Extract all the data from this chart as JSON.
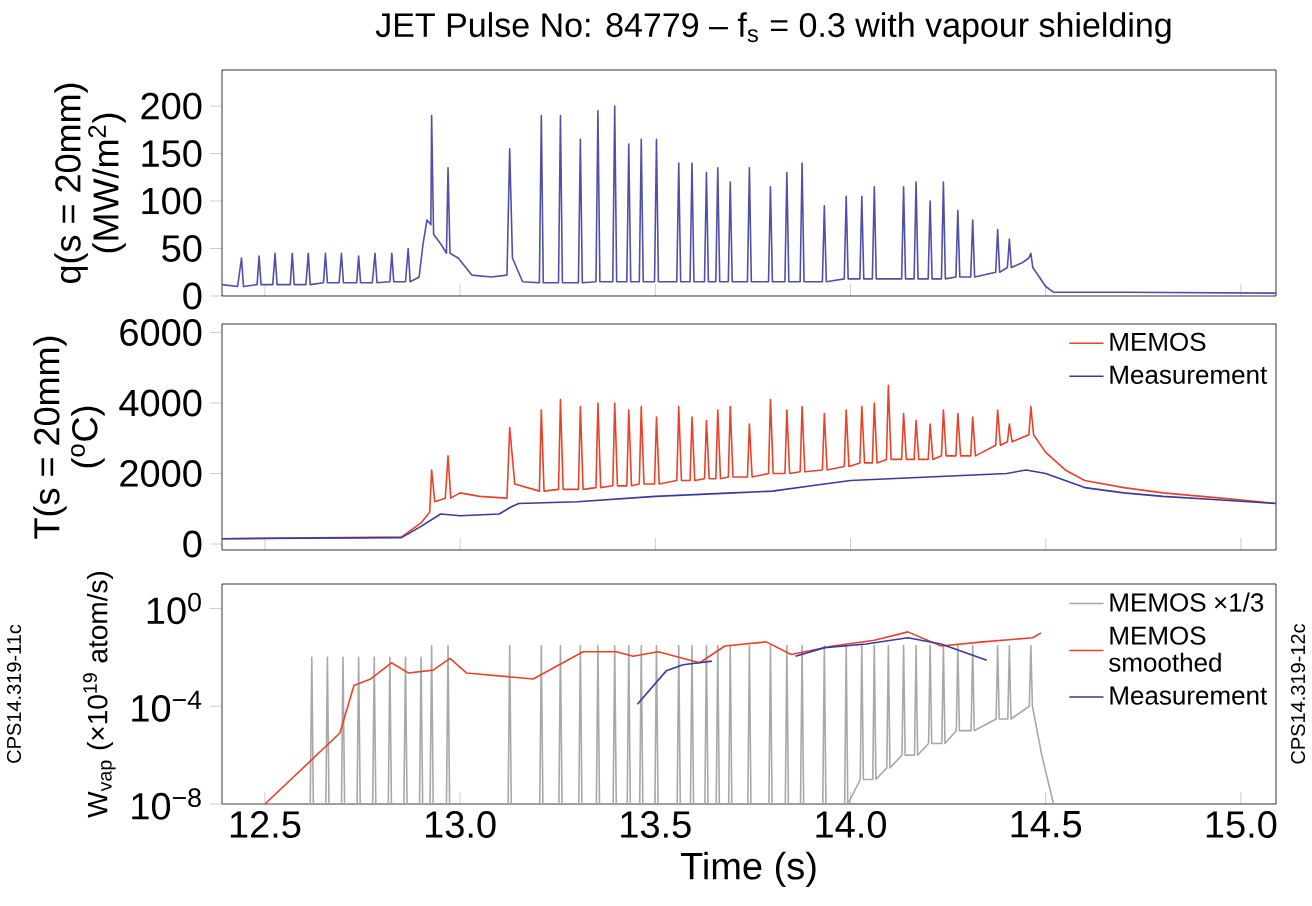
{
  "chart_data": [
    {
      "type": "line",
      "title": "JET Pulse No: 84779 – f$_{s}$ = 0.3 with vapour shielding",
      "ylabel": "q(s = 20mm) (MW/m$^{2}$)",
      "xlim": [
        12.39,
        15.09
      ],
      "ylim": [
        0,
        238
      ],
      "xticks": [
        12.5,
        13,
        13.5,
        14,
        14.5,
        15
      ],
      "yticks": [
        0,
        50,
        100,
        150,
        200
      ],
      "tick_labels": "y",
      "series": [
        {
          "color": "#5050a8",
          "x": [
            12.39,
            12.43,
            12.44,
            12.445,
            12.48,
            12.485,
            12.49,
            12.52,
            12.526,
            12.531,
            12.565,
            12.57,
            12.575,
            12.605,
            12.611,
            12.616,
            12.65,
            12.655,
            12.66,
            12.69,
            12.696,
            12.701,
            12.735,
            12.74,
            12.745,
            12.775,
            12.782,
            12.787,
            12.82,
            12.825,
            12.83,
            12.86,
            12.867,
            12.872,
            12.895,
            12.905,
            12.915,
            12.925,
            12.927,
            12.932,
            12.95,
            12.965,
            12.969,
            12.974,
            12.995,
            13.03,
            13.08,
            13.12,
            13.127,
            13.134,
            13.16,
            13.203,
            13.208,
            13.213,
            13.252,
            13.257,
            13.262,
            13.303,
            13.308,
            13.313,
            13.348,
            13.353,
            13.358,
            13.391,
            13.396,
            13.401,
            13.427,
            13.432,
            13.437,
            13.459,
            13.464,
            13.469,
            13.498,
            13.503,
            13.508,
            13.555,
            13.56,
            13.565,
            13.589,
            13.594,
            13.599,
            13.626,
            13.631,
            13.636,
            13.655,
            13.66,
            13.665,
            13.687,
            13.692,
            13.697,
            13.736,
            13.741,
            13.746,
            13.79,
            13.795,
            13.8,
            13.832,
            13.837,
            13.842,
            13.871,
            13.876,
            13.881,
            13.928,
            13.933,
            13.938,
            13.984,
            13.989,
            13.994,
            14.024,
            14.029,
            14.034,
            14.056,
            14.061,
            14.066,
            14.131,
            14.136,
            14.141,
            14.163,
            14.168,
            14.173,
            14.199,
            14.204,
            14.209,
            14.233,
            14.238,
            14.243,
            14.27,
            14.275,
            14.28,
            14.308,
            14.313,
            14.318,
            14.372,
            14.377,
            14.382,
            14.402,
            14.407,
            14.412,
            14.44,
            14.457,
            14.462,
            14.467,
            14.5,
            14.52,
            14.7,
            15.09
          ],
          "values": [
            12,
            10,
            40,
            10,
            12,
            42,
            12,
            12,
            45,
            12,
            12,
            45,
            12,
            12,
            45,
            12,
            14,
            45,
            14,
            14,
            45,
            14,
            14,
            42,
            14,
            14,
            45,
            14,
            15,
            45,
            15,
            15,
            50,
            15,
            20,
            55,
            80,
            75,
            190,
            65,
            55,
            45,
            135,
            45,
            40,
            22,
            20,
            22,
            155,
            40,
            15,
            14,
            190,
            14,
            14,
            190,
            14,
            14,
            165,
            14,
            15,
            195,
            15,
            15,
            200,
            15,
            15,
            160,
            15,
            15,
            165,
            15,
            15,
            165,
            15,
            15,
            140,
            15,
            15,
            140,
            15,
            15,
            130,
            15,
            15,
            135,
            15,
            15,
            120,
            15,
            15,
            135,
            15,
            15,
            115,
            15,
            15,
            130,
            15,
            15,
            140,
            15,
            15,
            95,
            15,
            18,
            105,
            18,
            18,
            105,
            18,
            18,
            115,
            18,
            18,
            115,
            18,
            18,
            120,
            18,
            18,
            100,
            18,
            18,
            120,
            18,
            20,
            90,
            20,
            20,
            80,
            20,
            25,
            70,
            25,
            30,
            60,
            30,
            35,
            40,
            45,
            30,
            10,
            4,
            4,
            3
          ]
        }
      ]
    },
    {
      "type": "line",
      "ylabel": "T(s = 20mm) ($^{o}$C)",
      "xlim": [
        12.39,
        15.09
      ],
      "ylim": [
        -170,
        6240
      ],
      "xticks": [
        12.5,
        13,
        13.5,
        14,
        14.5,
        15
      ],
      "yticks": [
        0,
        2000,
        4000,
        6000
      ],
      "tick_labels": "y",
      "legend": "top right",
      "series": [
        {
          "name": "MEMOS",
          "color": "#e8432a",
          "x": [
            12.39,
            12.85,
            12.9,
            12.922,
            12.927,
            12.935,
            12.962,
            12.969,
            12.976,
            13.0,
            13.05,
            13.12,
            13.127,
            13.14,
            13.203,
            13.208,
            13.215,
            13.252,
            13.257,
            13.264,
            13.303,
            13.308,
            13.315,
            13.348,
            13.353,
            13.36,
            13.391,
            13.396,
            13.403,
            13.427,
            13.432,
            13.439,
            13.459,
            13.464,
            13.471,
            13.498,
            13.503,
            13.51,
            13.555,
            13.56,
            13.567,
            13.589,
            13.594,
            13.601,
            13.626,
            13.631,
            13.638,
            13.655,
            13.66,
            13.667,
            13.687,
            13.692,
            13.699,
            13.736,
            13.741,
            13.748,
            13.79,
            13.795,
            13.802,
            13.832,
            13.837,
            13.844,
            13.871,
            13.876,
            13.883,
            13.928,
            13.933,
            13.94,
            13.984,
            13.989,
            13.996,
            14.024,
            14.029,
            14.036,
            14.056,
            14.061,
            14.068,
            14.092,
            14.097,
            14.104,
            14.131,
            14.136,
            14.143,
            14.163,
            14.168,
            14.175,
            14.199,
            14.204,
            14.211,
            14.233,
            14.238,
            14.245,
            14.27,
            14.275,
            14.282,
            14.308,
            14.313,
            14.32,
            14.372,
            14.377,
            14.384,
            14.402,
            14.407,
            14.414,
            14.457,
            14.462,
            14.469,
            14.5,
            14.55,
            14.6,
            14.7,
            14.8,
            14.95,
            15.09
          ],
          "values": [
            150,
            200,
            600,
            900,
            2100,
            1200,
            1300,
            2500,
            1300,
            1450,
            1350,
            1300,
            3300,
            1700,
            1500,
            3800,
            1500,
            1550,
            4100,
            1550,
            1550,
            3900,
            1550,
            1600,
            4000,
            1600,
            1650,
            4000,
            1650,
            1650,
            3800,
            1650,
            1700,
            3900,
            1700,
            1700,
            3600,
            1700,
            1800,
            3900,
            1800,
            1800,
            3600,
            1800,
            1850,
            3500,
            1850,
            1850,
            3800,
            1850,
            1900,
            3900,
            1900,
            1900,
            3400,
            1900,
            2000,
            4100,
            2000,
            2000,
            3800,
            2000,
            2050,
            3900,
            2050,
            2100,
            3700,
            2100,
            2200,
            3800,
            2200,
            2300,
            3900,
            2300,
            2300,
            4000,
            2300,
            2400,
            4500,
            2400,
            2400,
            3700,
            2400,
            2400,
            3500,
            2400,
            2400,
            3400,
            2400,
            2500,
            3800,
            2500,
            2500,
            3700,
            2500,
            2500,
            3600,
            2500,
            2800,
            3800,
            2800,
            2900,
            3400,
            2900,
            3100,
            3900,
            3100,
            2600,
            2100,
            1800,
            1600,
            1450,
            1300,
            1150
          ]
        },
        {
          "name": "Measurement",
          "color": "#3a3a9c",
          "x": [
            12.39,
            12.85,
            12.9,
            12.95,
            13.0,
            13.1,
            13.13,
            13.15,
            13.3,
            13.5,
            13.7,
            13.8,
            13.9,
            14.0,
            14.1,
            14.2,
            14.3,
            14.4,
            14.45,
            14.5,
            14.55,
            14.6,
            14.7,
            14.8,
            14.95,
            15.09
          ],
          "values": [
            150,
            180,
            500,
            850,
            800,
            850,
            1050,
            1150,
            1200,
            1350,
            1450,
            1500,
            1650,
            1800,
            1850,
            1900,
            1950,
            2000,
            2100,
            2000,
            1800,
            1600,
            1450,
            1350,
            1250,
            1150
          ]
        }
      ]
    },
    {
      "type": "line",
      "xlabel": "Time (s)",
      "ylabel": "W$_{vap}$ (×10$^{19}$ atom/s)",
      "log": true,
      "xlim": [
        12.39,
        15.09
      ],
      "ylim": [
        1e-08,
        10
      ],
      "xticks": [
        12.5,
        {
          "value": 13,
          "label": "13.0"
        },
        13.5,
        {
          "value": 14,
          "label": "14.0"
        },
        14.5,
        {
          "value": 15,
          "label": "15.0"
        }
      ],
      "yticks": [
        {
          "value": 1,
          "label": "10$^{0}$"
        },
        {
          "value": 0.0001,
          "label": "10$^{−4}$"
        },
        {
          "value": 1e-08,
          "label": "10$^{−8}$"
        }
      ],
      "legend": "top right",
      "annotations": [
        "CPS14.319-11c",
        "CPS14.319-12c"
      ],
      "series": [
        {
          "name": "MEMOS ×1/3",
          "color": "#a8a8a8",
          "x": [
            12.39,
            12.616,
            12.62,
            12.624,
            12.656,
            12.66,
            12.664,
            12.696,
            12.7,
            12.704,
            12.736,
            12.74,
            12.744,
            12.776,
            12.78,
            12.784,
            12.816,
            12.82,
            12.824,
            12.856,
            12.86,
            12.864,
            12.896,
            12.9,
            12.904,
            12.923,
            12.927,
            12.931,
            12.965,
            12.969,
            12.973,
            13.123,
            13.127,
            13.131,
            13.204,
            13.208,
            13.212,
            13.253,
            13.257,
            13.261,
            13.304,
            13.308,
            13.312,
            13.349,
            13.353,
            13.357,
            13.392,
            13.396,
            13.4,
            13.428,
            13.432,
            13.436,
            13.46,
            13.464,
            13.468,
            13.499,
            13.503,
            13.507,
            13.556,
            13.56,
            13.564,
            13.59,
            13.594,
            13.598,
            13.627,
            13.631,
            13.635,
            13.656,
            13.66,
            13.664,
            13.688,
            13.692,
            13.696,
            13.737,
            13.741,
            13.745,
            13.791,
            13.795,
            13.799,
            13.833,
            13.837,
            13.841,
            13.872,
            13.876,
            13.88,
            13.929,
            13.933,
            13.937,
            13.985,
            13.989,
            13.993,
            14.025,
            14.029,
            14.033,
            14.057,
            14.061,
            14.065,
            14.093,
            14.097,
            14.101,
            14.132,
            14.136,
            14.14,
            14.164,
            14.168,
            14.172,
            14.2,
            14.204,
            14.208,
            14.234,
            14.238,
            14.242,
            14.271,
            14.275,
            14.279,
            14.309,
            14.313,
            14.317,
            14.373,
            14.377,
            14.381,
            14.403,
            14.407,
            14.411,
            14.458,
            14.462,
            14.466,
            14.49,
            14.52
          ],
          "values": [
            1e-08,
            1e-08,
            0.01,
            1e-08,
            1e-08,
            0.01,
            1e-08,
            1e-08,
            0.01,
            1e-08,
            1e-08,
            0.01,
            1e-08,
            1e-08,
            0.01,
            1e-08,
            1e-08,
            0.01,
            1e-08,
            1e-08,
            0.01,
            1e-08,
            1e-08,
            0.01,
            1e-08,
            1e-08,
            0.03,
            1e-08,
            1e-08,
            0.03,
            1e-08,
            1e-08,
            0.03,
            1e-08,
            1e-08,
            0.03,
            1e-08,
            1e-08,
            0.03,
            1e-08,
            1e-08,
            0.03,
            1e-08,
            1e-08,
            0.03,
            1e-08,
            1e-08,
            0.03,
            1e-08,
            1e-08,
            0.03,
            1e-08,
            1e-08,
            0.03,
            1e-08,
            1e-08,
            0.03,
            1e-08,
            1e-08,
            0.03,
            1e-08,
            1e-08,
            0.03,
            1e-08,
            1e-08,
            0.03,
            1e-08,
            1e-08,
            0.03,
            1e-08,
            1e-08,
            0.03,
            1e-08,
            1e-08,
            0.03,
            1e-08,
            1e-08,
            0.03,
            1e-08,
            1e-08,
            0.03,
            1e-08,
            1e-08,
            0.03,
            1e-08,
            1e-08,
            0.03,
            1e-08,
            1e-08,
            0.03,
            1e-08,
            1e-07,
            0.03,
            1e-07,
            1e-07,
            0.03,
            1e-07,
            3e-07,
            0.03,
            3e-07,
            1e-06,
            0.03,
            1e-06,
            1e-06,
            0.03,
            1e-06,
            3e-06,
            0.03,
            3e-06,
            3e-06,
            0.03,
            3e-06,
            1e-05,
            0.03,
            1e-05,
            1e-05,
            0.03,
            1e-05,
            3e-05,
            0.03,
            3e-05,
            3e-05,
            0.03,
            3e-05,
            0.0001,
            0.03,
            0.0001,
            1e-06,
            1e-08
          ]
        },
        {
          "name": "MEMOS smoothed",
          "color": "#e8432a",
          "x": [
            12.5,
            12.692,
            12.728,
            12.771,
            12.824,
            12.867,
            12.931,
            12.974,
            13.016,
            13.187,
            13.315,
            13.4,
            13.443,
            13.507,
            13.614,
            13.678,
            13.784,
            13.848,
            13.955,
            14.061,
            14.147,
            14.232,
            14.339,
            14.467,
            14.488
          ],
          "values": [
            1e-08,
            8e-06,
            0.0007,
            0.0013,
            0.006,
            0.0023,
            0.003,
            0.009,
            0.0023,
            0.0013,
            0.017,
            0.017,
            0.011,
            0.017,
            0.006,
            0.029,
            0.043,
            0.013,
            0.029,
            0.05,
            0.11,
            0.029,
            0.043,
            0.063,
            0.1
          ]
        },
        {
          "name": "Measurement",
          "color": "#3a3a9c",
          "x": [
            13.454,
            13.528,
            13.571,
            13.645,
            13.75,
            13.859,
            13.934,
            14.04,
            14.147,
            14.232,
            14.349
          ],
          "values": [
            0.00012,
            0.0028,
            0.005,
            0.007,
            null,
            0.011,
            0.025,
            0.035,
            0.063,
            0.035,
            0.0076
          ]
        }
      ]
    }
  ]
}
